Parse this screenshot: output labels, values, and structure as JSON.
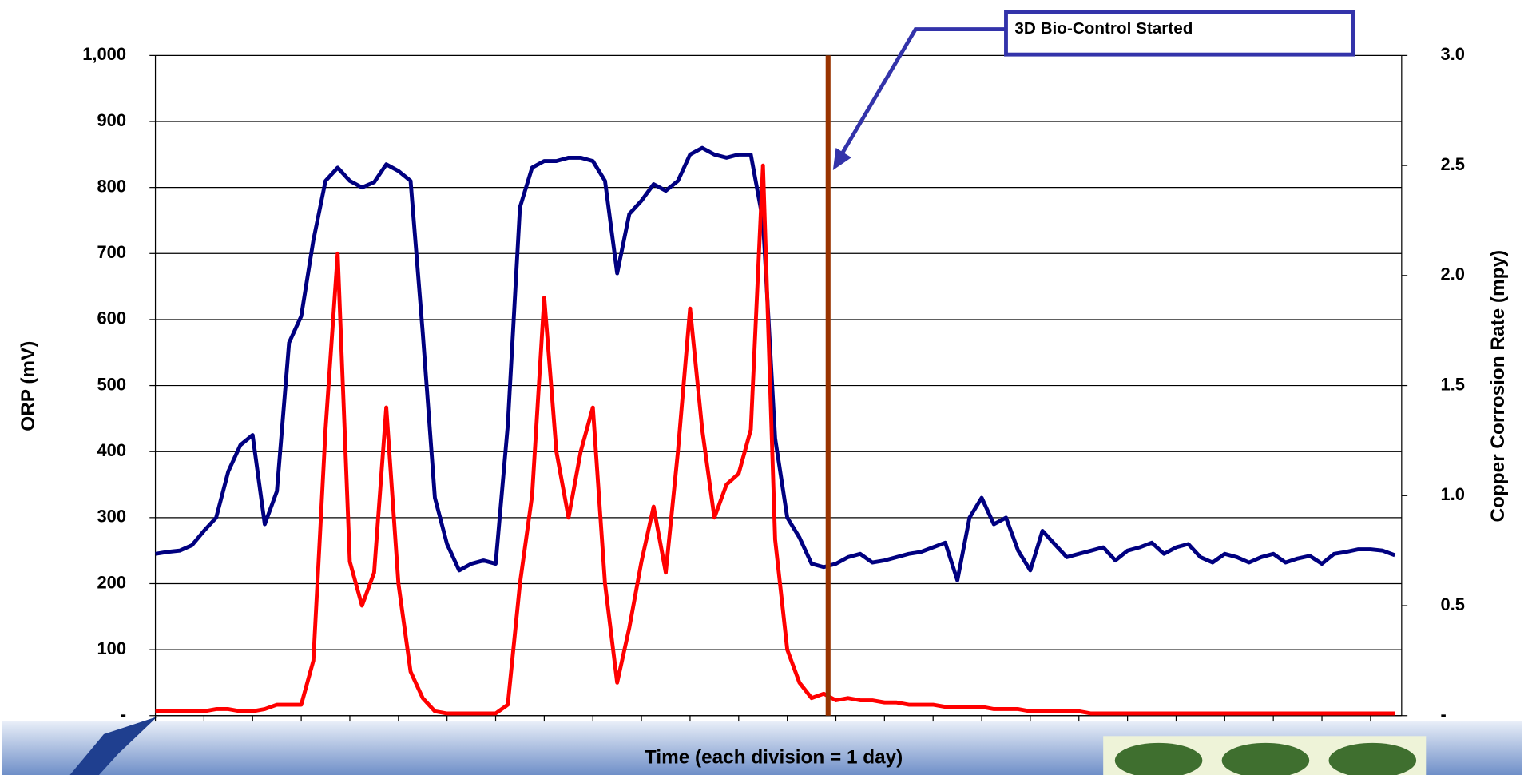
{
  "chart_data": {
    "type": "line",
    "x_label": "Time (each division = 1 day)",
    "y_label": "ORP (mV)",
    "y2_label": "Copper Corrosion Rate (mpy)",
    "annotation": {
      "text": "3D Bio-Control Started",
      "x": 13.84,
      "color": "#993300"
    },
    "xlim": [
      0,
      25.64
    ],
    "xticks": [
      0,
      1,
      2,
      3,
      4,
      5,
      6,
      7,
      8,
      9,
      10,
      11,
      12,
      13,
      14,
      15,
      16,
      17,
      18,
      19,
      20,
      21,
      22,
      23,
      24,
      25
    ],
    "ylim": [
      0,
      1000
    ],
    "yticks": [
      {
        "value": 0,
        "label": "-"
      },
      100,
      200,
      300,
      400,
      500,
      600,
      700,
      800,
      900,
      {
        "value": 1000,
        "label": "1,000"
      }
    ],
    "y2lim": [
      0,
      3
    ],
    "y2ticks": [
      {
        "value": 0,
        "label": "-"
      },
      0.5,
      {
        "value": 1,
        "label": "1.0"
      },
      1.5,
      {
        "value": 2,
        "label": "2.0"
      },
      2.5,
      {
        "value": 3,
        "label": "3.0"
      }
    ],
    "grid": true,
    "x": [
      0,
      0.25,
      0.5,
      0.75,
      1,
      1.25,
      1.5,
      1.75,
      2,
      2.25,
      2.5,
      2.75,
      3,
      3.25,
      3.5,
      3.75,
      4,
      4.25,
      4.5,
      4.75,
      5,
      5.25,
      5.5,
      5.75,
      6,
      6.25,
      6.5,
      6.75,
      7,
      7.25,
      7.5,
      7.75,
      8,
      8.25,
      8.5,
      8.75,
      9,
      9.25,
      9.5,
      9.75,
      10,
      10.25,
      10.5,
      10.75,
      11,
      11.25,
      11.5,
      11.75,
      12,
      12.25,
      12.5,
      12.75,
      13,
      13.25,
      13.5,
      13.75,
      14,
      14.25,
      14.5,
      14.75,
      15,
      15.25,
      15.5,
      15.75,
      16,
      16.25,
      16.5,
      16.75,
      17,
      17.25,
      17.5,
      17.75,
      18,
      18.25,
      18.5,
      18.75,
      19,
      19.25,
      19.5,
      19.75,
      20,
      20.25,
      20.5,
      20.75,
      21,
      21.25,
      21.5,
      21.75,
      22,
      22.25,
      22.5,
      22.75,
      23,
      23.25,
      23.5,
      23.75,
      24,
      24.25,
      24.5,
      24.75,
      25,
      25.25,
      25.5
    ],
    "series": [
      {
        "color": "#000080",
        "values": [
          245,
          248,
          250,
          258,
          280,
          300,
          370,
          410,
          425,
          290,
          340,
          565,
          605,
          720,
          810,
          830,
          810,
          800,
          808,
          835,
          825,
          810,
          580,
          330,
          260,
          220,
          230,
          235,
          230,
          440,
          770,
          830,
          840,
          840,
          845,
          845,
          840,
          810,
          670,
          760,
          780,
          805,
          795,
          810,
          850,
          860,
          850,
          845,
          850,
          850,
          750,
          420,
          300,
          270,
          230,
          225,
          230,
          240,
          245,
          232,
          235,
          240,
          245,
          248,
          255,
          262,
          205,
          300,
          330,
          290,
          300,
          250,
          220,
          280,
          260,
          240,
          245,
          250,
          255,
          235,
          250,
          255,
          262,
          245,
          255,
          260,
          240,
          232,
          245,
          240,
          232,
          240,
          245,
          232,
          238,
          242,
          230,
          245,
          248,
          252,
          252,
          250,
          243
        ]
      },
      {
        "color": "#ff0000",
        "axis": "y2",
        "values": [
          0.02,
          0.02,
          0.02,
          0.02,
          0.02,
          0.03,
          0.03,
          0.02,
          0.02,
          0.03,
          0.05,
          0.05,
          0.05,
          0.25,
          1.3,
          2.1,
          0.7,
          0.5,
          0.65,
          1.4,
          0.6,
          0.2,
          0.08,
          0.02,
          0.01,
          0.01,
          0.01,
          0.01,
          0.01,
          0.05,
          0.6,
          1.0,
          1.9,
          1.2,
          0.9,
          1.2,
          1.4,
          0.6,
          0.15,
          0.4,
          0.7,
          0.95,
          0.65,
          1.2,
          1.85,
          1.3,
          0.9,
          1.05,
          1.1,
          1.3,
          2.5,
          0.8,
          0.3,
          0.15,
          0.08,
          0.1,
          0.07,
          0.08,
          0.07,
          0.07,
          0.06,
          0.06,
          0.05,
          0.05,
          0.05,
          0.04,
          0.04,
          0.04,
          0.04,
          0.03,
          0.03,
          0.03,
          0.02,
          0.02,
          0.02,
          0.02,
          0.02,
          0.01,
          0.01,
          0.01,
          0.01,
          0.01,
          0.01,
          0.01,
          0.01,
          0.01,
          0.01,
          0.01,
          0.01,
          0.01,
          0.01,
          0.01,
          0.01,
          0.01,
          0.01,
          0.01,
          0.01,
          0.01,
          0.01,
          0.01,
          0.01,
          0.01,
          0.01
        ]
      }
    ]
  }
}
